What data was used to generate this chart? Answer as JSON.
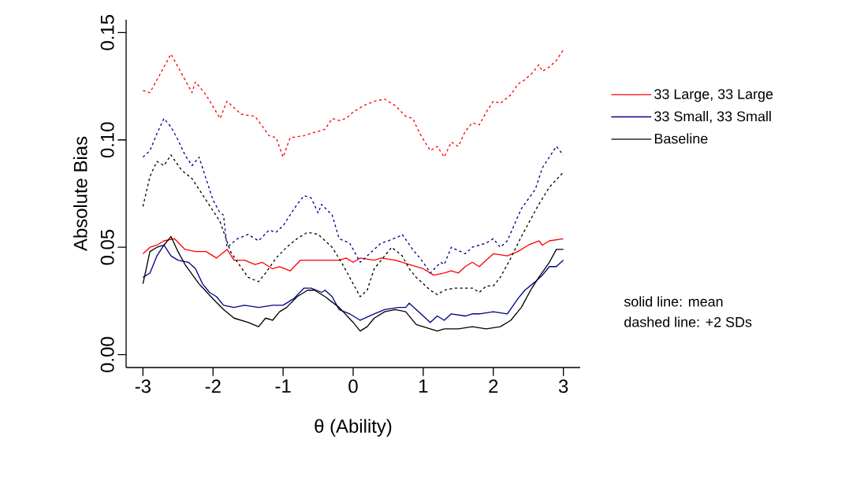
{
  "chart_data": {
    "type": "line",
    "xlabel": "θ (Ability)",
    "ylabel": "Absolute Bias",
    "xlim": [
      -3.24,
      3.24
    ],
    "ylim": [
      -0.006,
      0.156
    ],
    "xticks": [
      -3,
      -2,
      -1,
      0,
      1,
      2,
      3
    ],
    "yticks": [
      {
        "value": 0,
        "label": "0.00"
      },
      {
        "value": 0.05,
        "label": "0.05"
      },
      {
        "value": 0.1,
        "label": "0.10"
      },
      {
        "value": 0.15,
        "label": "0.15"
      }
    ],
    "grid": false,
    "legend": "right",
    "marker": "none",
    "annotations": [
      "solid line: mean",
      "dashed line: +2 SDs"
    ],
    "series": [
      {
        "name": "33 Large, 33 Large",
        "color": "#ff0000",
        "line_style": "solid",
        "x": [
          -3,
          -2.9,
          -2.8,
          -2.7,
          -2.55,
          -2.4,
          -2.25,
          -2.1,
          -1.95,
          -1.8,
          -1.7,
          -1.55,
          -1.4,
          -1.3,
          -1.15,
          -1.05,
          -0.9,
          -0.75,
          -0.55,
          -0.4,
          -0.2,
          -0.1,
          0,
          0.1,
          0.3,
          0.4,
          0.6,
          0.8,
          1.0,
          1.15,
          1.3,
          1.4,
          1.5,
          1.6,
          1.7,
          1.8,
          1.9,
          2.0,
          2.2,
          2.35,
          2.5,
          2.65,
          2.7,
          2.8,
          3
        ],
        "values": [
          0.047,
          0.05,
          0.051,
          0.053,
          0.054,
          0.049,
          0.048,
          0.048,
          0.045,
          0.049,
          0.044,
          0.044,
          0.042,
          0.043,
          0.04,
          0.041,
          0.039,
          0.044,
          0.044,
          0.044,
          0.044,
          0.045,
          0.043,
          0.045,
          0.044,
          0.045,
          0.044,
          0.042,
          0.04,
          0.037,
          0.038,
          0.039,
          0.038,
          0.041,
          0.043,
          0.041,
          0.044,
          0.047,
          0.046,
          0.048,
          0.051,
          0.053,
          0.051,
          0.053,
          0.054
        ]
      },
      {
        "name": "33 Small, 33 Small",
        "color": "#00008b",
        "line_style": "solid",
        "x": [
          -3,
          -2.9,
          -2.8,
          -2.7,
          -2.6,
          -2.5,
          -2.35,
          -2.25,
          -2.15,
          -2.05,
          -1.95,
          -1.85,
          -1.7,
          -1.55,
          -1.35,
          -1.15,
          -1.0,
          -0.85,
          -0.7,
          -0.6,
          -0.45,
          -0.4,
          -0.3,
          -0.2,
          -0.05,
          0.1,
          0.3,
          0.45,
          0.65,
          0.75,
          0.8,
          1.0,
          1.1,
          1.2,
          1.3,
          1.4,
          1.6,
          1.7,
          1.8,
          2.0,
          2.2,
          2.35,
          2.45,
          2.6,
          2.7,
          2.8,
          2.9,
          3
        ],
        "values": [
          0.036,
          0.038,
          0.046,
          0.051,
          0.046,
          0.044,
          0.043,
          0.04,
          0.033,
          0.029,
          0.027,
          0.023,
          0.022,
          0.023,
          0.022,
          0.023,
          0.023,
          0.026,
          0.031,
          0.031,
          0.029,
          0.03,
          0.027,
          0.021,
          0.019,
          0.016,
          0.019,
          0.021,
          0.022,
          0.022,
          0.024,
          0.018,
          0.015,
          0.018,
          0.016,
          0.019,
          0.018,
          0.019,
          0.019,
          0.02,
          0.019,
          0.026,
          0.03,
          0.034,
          0.037,
          0.041,
          0.041,
          0.044
        ]
      },
      {
        "name": "Baseline",
        "color": "#000000",
        "line_style": "solid",
        "x": [
          -3,
          -2.9,
          -2.8,
          -2.7,
          -2.6,
          -2.5,
          -2.4,
          -2.2,
          -2.0,
          -1.85,
          -1.7,
          -1.5,
          -1.35,
          -1.25,
          -1.15,
          -1.05,
          -0.95,
          -0.8,
          -0.65,
          -0.55,
          -0.4,
          -0.2,
          0,
          0.1,
          0.2,
          0.3,
          0.45,
          0.6,
          0.75,
          0.9,
          1.1,
          1.2,
          1.3,
          1.5,
          1.7,
          1.9,
          2.1,
          2.25,
          2.4,
          2.55,
          2.65,
          2.8,
          2.9,
          3
        ],
        "values": [
          0.033,
          0.048,
          0.05,
          0.051,
          0.055,
          0.048,
          0.042,
          0.033,
          0.026,
          0.021,
          0.017,
          0.015,
          0.013,
          0.017,
          0.016,
          0.02,
          0.022,
          0.027,
          0.03,
          0.03,
          0.027,
          0.022,
          0.015,
          0.011,
          0.013,
          0.017,
          0.02,
          0.021,
          0.02,
          0.014,
          0.012,
          0.011,
          0.012,
          0.012,
          0.013,
          0.012,
          0.013,
          0.016,
          0.022,
          0.031,
          0.036,
          0.043,
          0.049,
          0.049
        ]
      },
      {
        "color": "#ff0000",
        "line_style": "dotted",
        "x": [
          -3,
          -2.9,
          -2.6,
          -2.3,
          -2.25,
          -2.1,
          -1.9,
          -1.8,
          -1.6,
          -1.4,
          -1.2,
          -1.1,
          -1.0,
          -0.9,
          -0.7,
          -0.5,
          -0.4,
          -0.3,
          -0.2,
          -0.1,
          0,
          0.15,
          0.3,
          0.45,
          0.6,
          0.75,
          0.85,
          0.95,
          1.1,
          1.2,
          1.3,
          1.4,
          1.5,
          1.6,
          1.7,
          1.8,
          1.9,
          2.0,
          2.1,
          2.25,
          2.35,
          2.45,
          2.55,
          2.65,
          2.7,
          2.8,
          2.9,
          3
        ],
        "values": [
          0.123,
          0.122,
          0.14,
          0.122,
          0.127,
          0.121,
          0.11,
          0.118,
          0.112,
          0.111,
          0.102,
          0.101,
          0.092,
          0.101,
          0.102,
          0.104,
          0.105,
          0.11,
          0.109,
          0.11,
          0.113,
          0.116,
          0.118,
          0.119,
          0.116,
          0.111,
          0.11,
          0.103,
          0.095,
          0.097,
          0.092,
          0.099,
          0.097,
          0.104,
          0.108,
          0.107,
          0.113,
          0.118,
          0.117,
          0.121,
          0.126,
          0.128,
          0.131,
          0.135,
          0.132,
          0.134,
          0.137,
          0.142
        ]
      },
      {
        "color": "#00008b",
        "line_style": "dotted",
        "x": [
          -3,
          -2.9,
          -2.8,
          -2.7,
          -2.6,
          -2.5,
          -2.4,
          -2.3,
          -2.2,
          -2.1,
          -2.0,
          -1.9,
          -1.85,
          -1.8,
          -1.65,
          -1.5,
          -1.35,
          -1.2,
          -1.1,
          -1.0,
          -0.9,
          -0.8,
          -0.7,
          -0.6,
          -0.5,
          -0.45,
          -0.3,
          -0.2,
          -0.05,
          0.1,
          0.2,
          0.4,
          0.5,
          0.65,
          0.7,
          0.85,
          1.0,
          1.1,
          1.25,
          1.3,
          1.4,
          1.6,
          1.7,
          1.9,
          2.0,
          2.1,
          2.2,
          2.4,
          2.6,
          2.7,
          2.9,
          3
        ],
        "values": [
          0.092,
          0.095,
          0.103,
          0.11,
          0.106,
          0.1,
          0.093,
          0.088,
          0.092,
          0.082,
          0.072,
          0.066,
          0.065,
          0.05,
          0.054,
          0.056,
          0.053,
          0.058,
          0.057,
          0.06,
          0.065,
          0.07,
          0.074,
          0.073,
          0.066,
          0.07,
          0.065,
          0.054,
          0.052,
          0.043,
          0.046,
          0.052,
          0.053,
          0.055,
          0.056,
          0.049,
          0.043,
          0.038,
          0.043,
          0.042,
          0.05,
          0.047,
          0.05,
          0.052,
          0.054,
          0.05,
          0.053,
          0.068,
          0.077,
          0.087,
          0.097,
          0.093
        ]
      },
      {
        "color": "#000000",
        "line_style": "dotted",
        "x": [
          -3,
          -2.9,
          -2.8,
          -2.7,
          -2.6,
          -2.45,
          -2.3,
          -2.1,
          -1.9,
          -1.75,
          -1.65,
          -1.5,
          -1.35,
          -1.25,
          -1.1,
          -0.95,
          -0.8,
          -0.65,
          -0.5,
          -0.3,
          -0.15,
          0,
          0.1,
          0.2,
          0.3,
          0.45,
          0.55,
          0.7,
          0.8,
          0.9,
          1.1,
          1.2,
          1.3,
          1.45,
          1.7,
          1.8,
          1.9,
          2.0,
          2.1,
          2.25,
          2.4,
          2.55,
          2.65,
          2.8,
          3
        ],
        "values": [
          0.069,
          0.083,
          0.09,
          0.088,
          0.093,
          0.086,
          0.082,
          0.072,
          0.062,
          0.048,
          0.043,
          0.036,
          0.034,
          0.038,
          0.045,
          0.05,
          0.054,
          0.057,
          0.056,
          0.05,
          0.042,
          0.033,
          0.027,
          0.03,
          0.04,
          0.046,
          0.05,
          0.046,
          0.04,
          0.036,
          0.03,
          0.028,
          0.03,
          0.031,
          0.031,
          0.029,
          0.032,
          0.032,
          0.036,
          0.045,
          0.055,
          0.064,
          0.07,
          0.078,
          0.085
        ]
      }
    ]
  }
}
